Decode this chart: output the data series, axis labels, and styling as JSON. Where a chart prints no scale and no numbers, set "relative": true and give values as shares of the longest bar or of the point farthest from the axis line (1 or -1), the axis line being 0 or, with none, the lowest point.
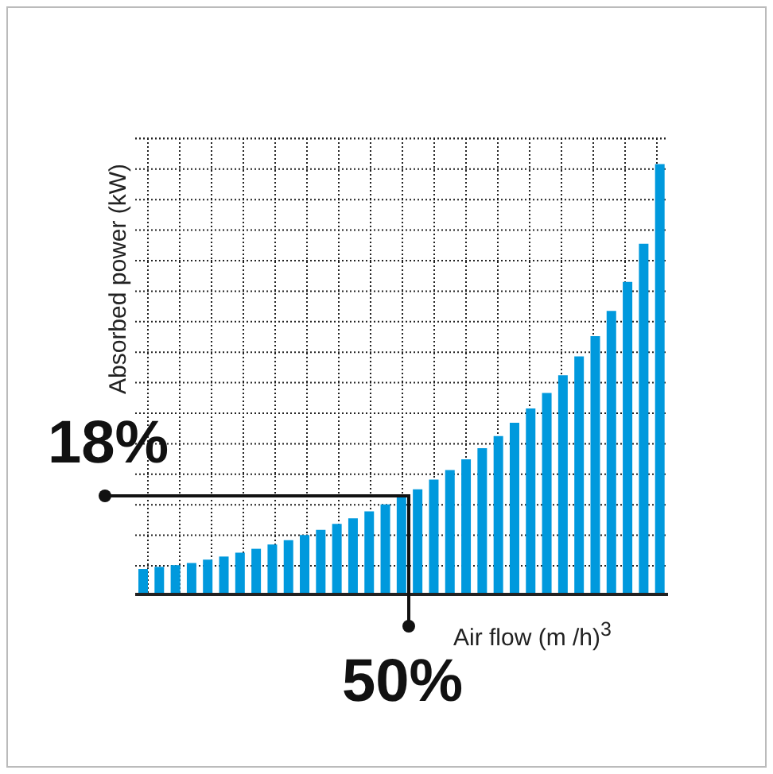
{
  "chart_data": {
    "type": "bar",
    "relative": true,
    "xlabel": "Air flow (m /h)$^{3}$",
    "ylabel": "Absorbed power (kW)",
    "annotations": [
      "18%",
      "50%"
    ],
    "grid": true,
    "color": "#0099dd",
    "categories": [
      null,
      null,
      null,
      null,
      null,
      null,
      null,
      null,
      null,
      null,
      null,
      null,
      null,
      null,
      null,
      null,
      null,
      null,
      null,
      null,
      null,
      null,
      null,
      null,
      null,
      null,
      null,
      null,
      null,
      null,
      null,
      null,
      null
    ],
    "values": [
      0.059,
      0.064,
      0.068,
      0.073,
      0.081,
      0.088,
      0.097,
      0.106,
      0.116,
      0.126,
      0.138,
      0.15,
      0.164,
      0.177,
      0.193,
      0.209,
      0.226,
      0.244,
      0.267,
      0.289,
      0.314,
      0.34,
      0.368,
      0.399,
      0.432,
      0.468,
      0.509,
      0.553,
      0.6,
      0.659,
      0.726,
      0.815,
      1
    ]
  }
}
